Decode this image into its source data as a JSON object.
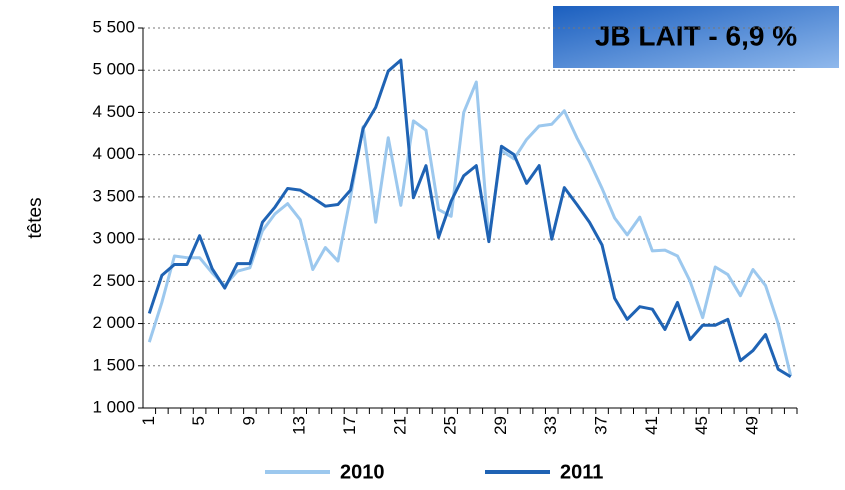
{
  "chart_data": {
    "type": "line",
    "annotation": "JB LAIT - 6,9 %",
    "ylabel": "têtes",
    "categories": [
      "1",
      null,
      null,
      null,
      "5",
      null,
      null,
      null,
      "9",
      null,
      null,
      null,
      "13",
      null,
      null,
      null,
      "17",
      null,
      null,
      null,
      "21",
      null,
      null,
      null,
      "25",
      null,
      null,
      null,
      "29",
      null,
      null,
      null,
      "33",
      null,
      null,
      null,
      "37",
      null,
      null,
      null,
      "41",
      null,
      null,
      null,
      "45",
      null,
      null,
      null,
      "49",
      null,
      null,
      null
    ],
    "series": [
      {
        "name": "2010",
        "color": "#9cc8ee",
        "values": [
          1780,
          2250,
          2800,
          2780,
          2780,
          2600,
          2450,
          2620,
          2660,
          3100,
          3300,
          3420,
          3230,
          2640,
          2900,
          2740,
          3500,
          4330,
          3200,
          4200,
          3400,
          4400,
          4290,
          3350,
          3270,
          4500,
          4860,
          3000,
          4050,
          3950,
          4180,
          4340,
          4360,
          4520,
          4200,
          3920,
          3600,
          3250,
          3050,
          3260,
          2860,
          2870,
          2800,
          2500,
          2070,
          2670,
          2580,
          2330,
          2640,
          2450,
          2000,
          1380
        ]
      },
      {
        "name": "2011",
        "color": "#1f63b4",
        "values": [
          2120,
          2570,
          2700,
          2700,
          3040,
          2650,
          2420,
          2710,
          2710,
          3200,
          3380,
          3600,
          3580,
          3490,
          3390,
          3410,
          3580,
          4310,
          4560,
          4990,
          5120,
          3490,
          3870,
          3020,
          3450,
          3750,
          3870,
          2970,
          4100,
          4000,
          3660,
          3870,
          3000,
          3610,
          3410,
          3200,
          2930,
          2300,
          2050,
          2200,
          2170,
          1930,
          2250,
          1810,
          1980,
          1980,
          2050,
          1560,
          1680,
          1870,
          1460,
          1370
        ]
      }
    ],
    "ylim": [
      1000,
      5500
    ],
    "yticks": [
      {
        "value": 1000,
        "label": "1 000"
      },
      {
        "value": 1500,
        "label": "1 500"
      },
      {
        "value": 2000,
        "label": "2 000"
      },
      {
        "value": 2500,
        "label": "2 500"
      },
      {
        "value": 3000,
        "label": "3 000"
      },
      {
        "value": 3500,
        "label": "3 500"
      },
      {
        "value": 4000,
        "label": "4 000"
      },
      {
        "value": 4500,
        "label": "4 500"
      },
      {
        "value": 5000,
        "label": "5 000"
      },
      {
        "value": 5500,
        "label": "5 500"
      }
    ],
    "grid": true
  }
}
